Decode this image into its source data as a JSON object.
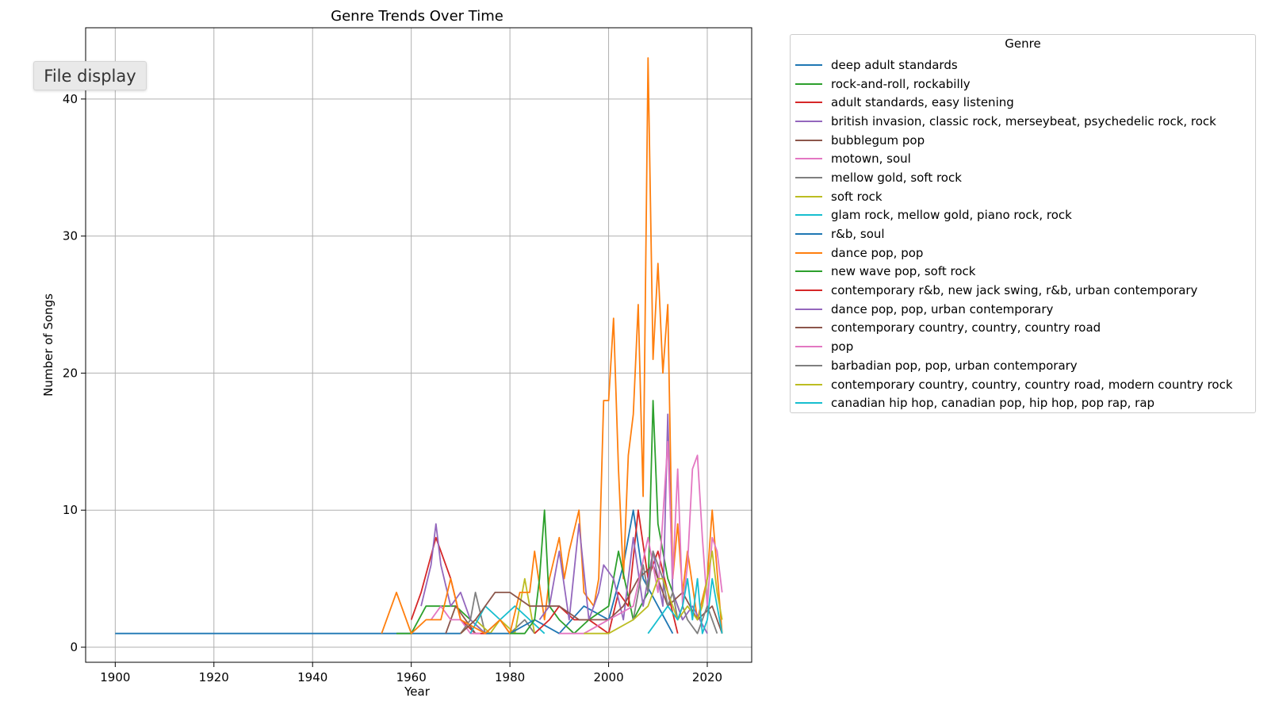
{
  "chart_data": {
    "type": "line",
    "title": "Genre Trends Over Time",
    "xlabel": "Year",
    "ylabel": "Number of Songs",
    "xlim": [
      1894,
      2029
    ],
    "ylim": [
      -1.1,
      45.2
    ],
    "xticks": [
      1900,
      1920,
      1940,
      1960,
      1980,
      2000,
      2020
    ],
    "yticks": [
      0,
      10,
      20,
      30,
      40
    ],
    "grid": true,
    "legend": {
      "title": "Genre",
      "placement": "outside-right"
    },
    "series": [
      {
        "name": "deep adult standards",
        "color": "#1f77b4",
        "x": [
          1900,
          1955,
          1958,
          1960,
          1965,
          1970
        ],
        "y": [
          1,
          1,
          1,
          1,
          1,
          1
        ]
      },
      {
        "name": "rock-and-roll, rockabilly",
        "color": "#2ca02c",
        "x": [
          1957,
          1960,
          1963,
          1966,
          1969,
          1972,
          1975
        ],
        "y": [
          1,
          1,
          3,
          3,
          3,
          2,
          1
        ]
      },
      {
        "name": "adult standards, easy listening",
        "color": "#d62728",
        "x": [
          1960,
          1962,
          1965,
          1968,
          1970,
          1973,
          1976
        ],
        "y": [
          2,
          4,
          8,
          5,
          2,
          1,
          1
        ]
      },
      {
        "name": "british invasion, classic rock, merseybeat, psychedelic rock, rock",
        "color": "#9467bd",
        "x": [
          1962,
          1964,
          1965,
          1966,
          1968,
          1970,
          1972,
          1975
        ],
        "y": [
          3,
          6,
          9,
          6,
          3,
          4,
          2,
          1
        ]
      },
      {
        "name": "bubblegum pop",
        "color": "#8c564b",
        "x": [
          1967,
          1969,
          1971,
          1973
        ],
        "y": [
          1,
          3,
          2,
          1
        ]
      },
      {
        "name": "motown, soul",
        "color": "#e377c2",
        "x": [
          1964,
          1966,
          1968,
          1970,
          1972,
          1974
        ],
        "y": [
          2,
          3,
          2,
          2,
          1,
          1
        ]
      },
      {
        "name": "mellow gold, soft rock",
        "color": "#7f7f7f",
        "x": [
          1970,
          1972,
          1973,
          1975,
          1978,
          1980,
          1983,
          1985
        ],
        "y": [
          1,
          2,
          4,
          1,
          2,
          1,
          2,
          1
        ]
      },
      {
        "name": "soft rock",
        "color": "#bcbd22",
        "x": [
          1970,
          1973,
          1976,
          1978,
          1981,
          1983,
          1985
        ],
        "y": [
          1,
          2,
          1,
          2,
          1,
          5,
          1
        ]
      },
      {
        "name": "glam rock, mellow gold, piano rock, rock",
        "color": "#17becf",
        "x": [
          1972,
          1975,
          1978,
          1981,
          1984,
          1987
        ],
        "y": [
          1,
          3,
          2,
          3,
          2,
          1
        ]
      },
      {
        "name": "r&b, soul",
        "color": "#1f77b4",
        "x": [
          1975,
          1980,
          1985,
          1990,
          1995,
          2000,
          2003,
          2005,
          2007,
          2010,
          2013
        ],
        "y": [
          1,
          1,
          2,
          1,
          3,
          2,
          6,
          10,
          5,
          3,
          1
        ]
      },
      {
        "name": "dance pop, pop",
        "color": "#ff7f0e",
        "x": [
          1954,
          1957,
          1960,
          1963,
          1966,
          1968,
          1970,
          1975,
          1978,
          1980,
          1982,
          1984,
          1985,
          1987,
          1988,
          1990,
          1991,
          1992,
          1994,
          1995,
          1997,
          1998,
          1999,
          2000,
          2001,
          2002,
          2003,
          2004,
          2005,
          2006,
          2007,
          2008,
          2009,
          2010,
          2011,
          2012,
          2013,
          2014,
          2015,
          2016,
          2018,
          2020,
          2021,
          2023
        ],
        "y": [
          1,
          4,
          1,
          2,
          2,
          5,
          2,
          1,
          2,
          1,
          4,
          4,
          7,
          2,
          5,
          8,
          5,
          7,
          10,
          4,
          3,
          5,
          18,
          18,
          24,
          13,
          5,
          14,
          17,
          25,
          11,
          43,
          21,
          28,
          20,
          25,
          5,
          9,
          4,
          7,
          2,
          5,
          10,
          1
        ]
      },
      {
        "name": "new wave pop, soft rock",
        "color": "#2ca02c",
        "x": [
          1980,
          1983,
          1985,
          1986,
          1987,
          1988,
          1990,
          1993,
          1996,
          2000,
          2002,
          2005,
          2008,
          2009,
          2010,
          2012,
          2015
        ],
        "y": [
          1,
          1,
          2,
          5,
          10,
          3,
          2,
          1,
          2,
          3,
          7,
          2,
          4,
          18,
          9,
          5,
          2
        ]
      },
      {
        "name": "contemporary r&b, new jack swing, r&b, urban contemporary",
        "color": "#d62728",
        "x": [
          1985,
          1988,
          1990,
          1993,
          1996,
          2000,
          2002,
          2004,
          2006,
          2008,
          2010,
          2012,
          2014
        ],
        "y": [
          1,
          2,
          3,
          2,
          2,
          1,
          4,
          3,
          10,
          5,
          7,
          4,
          1
        ]
      },
      {
        "name": "dance pop, pop, urban contemporary",
        "color": "#9467bd",
        "x": [
          1986,
          1988,
          1990,
          1992,
          1994,
          1996,
          1998,
          1999,
          2001,
          2003,
          2005,
          2007,
          2009,
          2010,
          2011,
          2012,
          2013,
          2015,
          2017,
          2020
        ],
        "y": [
          2,
          3,
          7,
          2,
          9,
          2,
          4,
          6,
          5,
          2,
          8,
          3,
          7,
          5,
          3,
          17,
          4,
          2,
          3,
          1
        ]
      },
      {
        "name": "contemporary country, country, country road",
        "color": "#8c564b",
        "x": [
          1970,
          1973,
          1977,
          1980,
          1984,
          1987,
          1990,
          1994,
          1997,
          2000,
          2003,
          2006,
          2009,
          2012,
          2015,
          2018,
          2021,
          2023
        ],
        "y": [
          1,
          2,
          4,
          4,
          3,
          3,
          3,
          2,
          2,
          2,
          3,
          5,
          6,
          3,
          4,
          2,
          3,
          1
        ]
      },
      {
        "name": "pop",
        "color": "#e377c2",
        "x": [
          1990,
          1995,
          2000,
          2005,
          2008,
          2010,
          2012,
          2013,
          2014,
          2015,
          2016,
          2017,
          2018,
          2019,
          2020,
          2021,
          2022,
          2023
        ],
        "y": [
          1,
          1,
          2,
          3,
          8,
          4,
          15,
          5,
          13,
          3,
          6,
          13,
          14,
          8,
          3,
          8,
          7,
          4
        ]
      },
      {
        "name": "barbadian pop, pop, urban contemporary",
        "color": "#7f7f7f",
        "x": [
          2005,
          2007,
          2008,
          2009,
          2010,
          2011,
          2012,
          2013,
          2014,
          2015,
          2016,
          2018,
          2020,
          2022
        ],
        "y": [
          2,
          6,
          4,
          7,
          6,
          5,
          3,
          4,
          2,
          3,
          2,
          1,
          3,
          1
        ]
      },
      {
        "name": "contemporary country, country, country road, modern country rock",
        "color": "#bcbd22",
        "x": [
          1995,
          2000,
          2005,
          2008,
          2010,
          2011,
          2012,
          2014,
          2016,
          2018,
          2019,
          2020,
          2021,
          2022,
          2023
        ],
        "y": [
          1,
          1,
          2,
          3,
          5,
          5,
          4,
          2,
          3,
          2,
          3,
          5,
          7,
          4,
          2
        ]
      },
      {
        "name": "canadian hip hop, canadian pop, hip hop, pop rap, rap",
        "color": "#17becf",
        "x": [
          2008,
          2010,
          2012,
          2014,
          2015,
          2016,
          2017,
          2018,
          2019,
          2020,
          2021,
          2022,
          2023
        ],
        "y": [
          1,
          2,
          3,
          2,
          3,
          5,
          2,
          5,
          1,
          2,
          5,
          3,
          1
        ]
      }
    ]
  },
  "ui": {
    "file_display_label": "File display"
  }
}
